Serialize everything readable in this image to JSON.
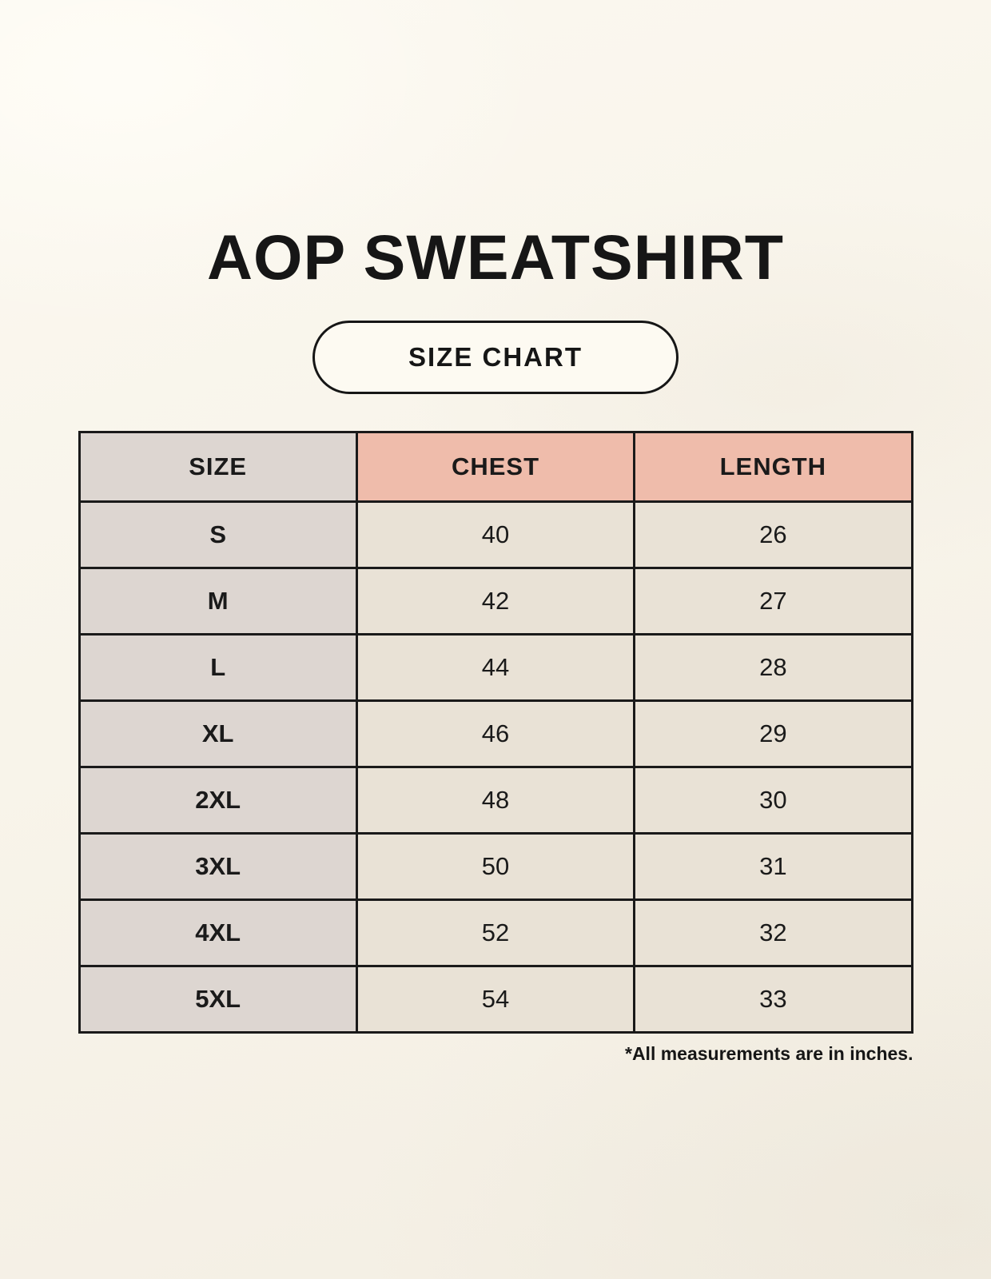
{
  "page": {
    "title": "AOP SWEATSHIRT",
    "size_chart_badge": "SIZE CHART",
    "footnote": "*All measurements are in inches."
  },
  "colors": {
    "page_background": "#f8f4ea",
    "size_column_fill": "#ddd6d1",
    "measure_header_fill": "#efbcab",
    "value_cell_fill": "#e9e2d6",
    "border": "#1a1a1a",
    "text": "#161616"
  },
  "chart_data": {
    "type": "table",
    "title": "AOP SWEATSHIRT",
    "subtitle": "SIZE CHART",
    "units": "inches",
    "columns": [
      "SIZE",
      "CHEST",
      "LENGTH"
    ],
    "rows": [
      [
        "S",
        "40",
        "26"
      ],
      [
        "M",
        "42",
        "27"
      ],
      [
        "L",
        "44",
        "28"
      ],
      [
        "XL",
        "46",
        "29"
      ],
      [
        "2XL",
        "48",
        "30"
      ],
      [
        "3XL",
        "50",
        "31"
      ],
      [
        "4XL",
        "52",
        "32"
      ],
      [
        "5XL",
        "54",
        "33"
      ]
    ],
    "layout": {
      "legend": "none",
      "grid": "full black borders",
      "columns_equal_width": true
    }
  }
}
